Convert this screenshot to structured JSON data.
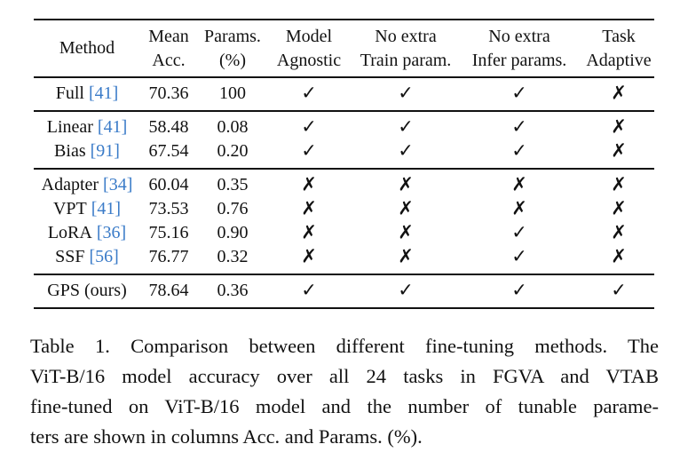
{
  "table": {
    "header": [
      [
        "Method"
      ],
      [
        "Mean",
        "Acc."
      ],
      [
        "Params.",
        "(%)"
      ],
      [
        "Model",
        "Agnostic"
      ],
      [
        "No extra",
        "Train param."
      ],
      [
        "No extra",
        "Infer params."
      ],
      [
        "Task",
        "Adaptive"
      ]
    ],
    "groups": [
      [
        {
          "method": "Full",
          "cite": "[41]",
          "acc": "70.36",
          "params": "100",
          "cells": [
            "✓",
            "✓",
            "✓",
            "✗"
          ]
        }
      ],
      [
        {
          "method": "Linear",
          "cite": "[41]",
          "acc": "58.48",
          "params": "0.08",
          "cells": [
            "✓",
            "✓",
            "✓",
            "✗"
          ]
        },
        {
          "method": "Bias",
          "cite": "[91]",
          "acc": "67.54",
          "params": "0.20",
          "cells": [
            "✓",
            "✓",
            "✓",
            "✗"
          ]
        }
      ],
      [
        {
          "method": "Adapter",
          "cite": "[34]",
          "acc": "60.04",
          "params": "0.35",
          "cells": [
            "✗",
            "✗",
            "✗",
            "✗"
          ]
        },
        {
          "method": "VPT",
          "cite": "[41]",
          "acc": "73.53",
          "params": "0.76",
          "cells": [
            "✗",
            "✗",
            "✗",
            "✗"
          ]
        },
        {
          "method": "LoRA",
          "cite": "[36]",
          "acc": "75.16",
          "params": "0.90",
          "cells": [
            "✗",
            "✗",
            "✓",
            "✗"
          ]
        },
        {
          "method": "SSF",
          "cite": "[56]",
          "acc": "76.77",
          "params": "0.32",
          "cells": [
            "✗",
            "✗",
            "✓",
            "✗"
          ]
        }
      ],
      [
        {
          "method": "GPS (ours)",
          "acc": "78.64",
          "params": "0.36",
          "cells": [
            "✓",
            "✓",
            "✓",
            "✓"
          ]
        }
      ]
    ]
  },
  "caption": [
    "Table 1. Comparison between different fine-tuning methods. The",
    "ViT-B/16 model accuracy over all 24 tasks in FGVA and VTAB",
    "fine-tuned on ViT-B/16 model and the number of tunable parame-",
    "ters are shown in columns Acc. and Params. (%)."
  ]
}
